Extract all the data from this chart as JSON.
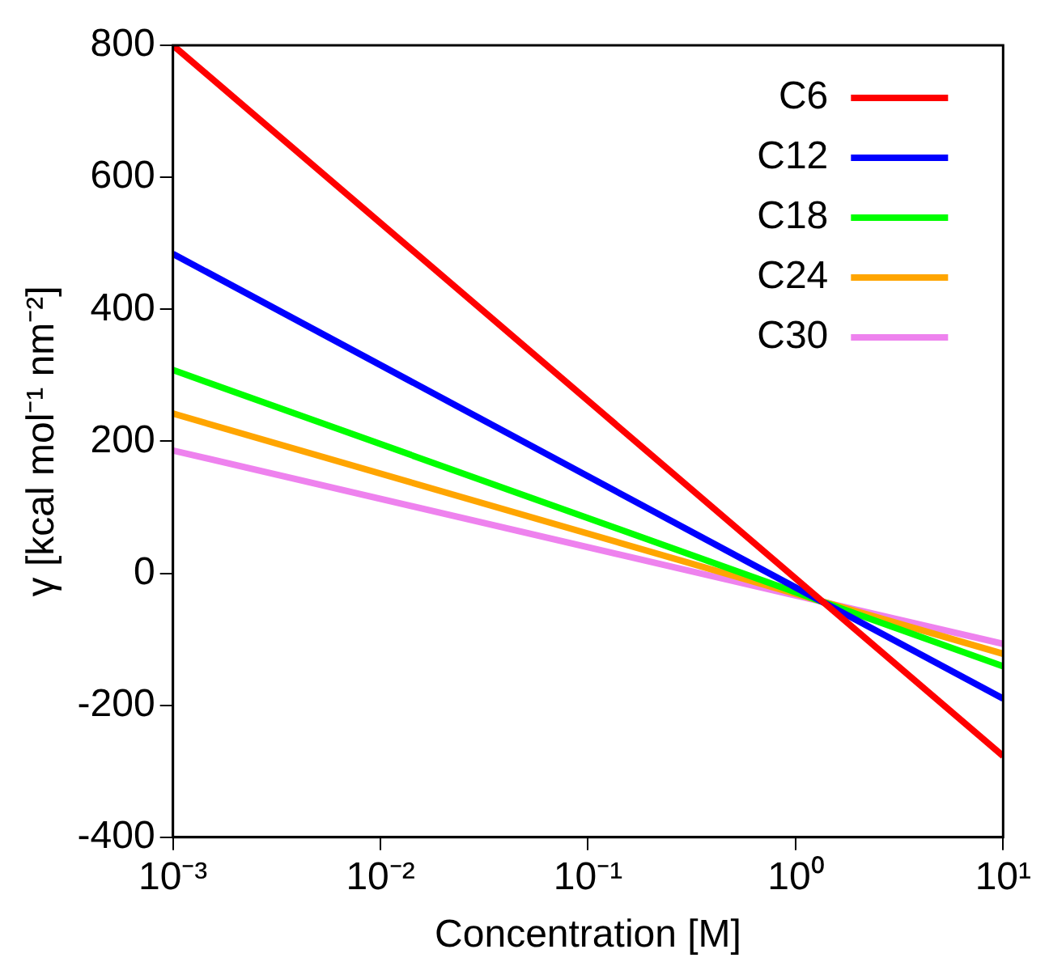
{
  "chart_data": {
    "type": "line",
    "xlabel": "Concentration [M]",
    "ylabel": "γ [kcal mol⁻¹ nm⁻²]",
    "log": "x",
    "x": [
      0.001,
      10
    ],
    "series": [
      {
        "name": "C6",
        "color": "#ff0000",
        "values": [
          800,
          -277
        ]
      },
      {
        "name": "C12",
        "color": "#0000ff",
        "values": [
          484,
          -190
        ]
      },
      {
        "name": "C18",
        "color": "#00ff00",
        "values": [
          308,
          -141
        ]
      },
      {
        "name": "C24",
        "color": "#ffa500",
        "values": [
          242,
          -122
        ]
      },
      {
        "name": "C30",
        "color": "#ee82ee",
        "values": [
          186,
          -107
        ]
      }
    ],
    "xlim": [
      0.001,
      10
    ],
    "xticks": [
      {
        "value": 0.001,
        "label": "10⁻³"
      },
      {
        "value": 0.01,
        "label": "10⁻²"
      },
      {
        "value": 0.1,
        "label": "10⁻¹"
      },
      {
        "value": 1,
        "label": "10⁰"
      },
      {
        "value": 10,
        "label": "10¹"
      }
    ],
    "ylim": [
      -400,
      800
    ],
    "yticks": [
      -400,
      -200,
      0,
      200,
      400,
      600,
      800
    ],
    "legend": "top right",
    "marker": "none",
    "line_style": "solid"
  }
}
